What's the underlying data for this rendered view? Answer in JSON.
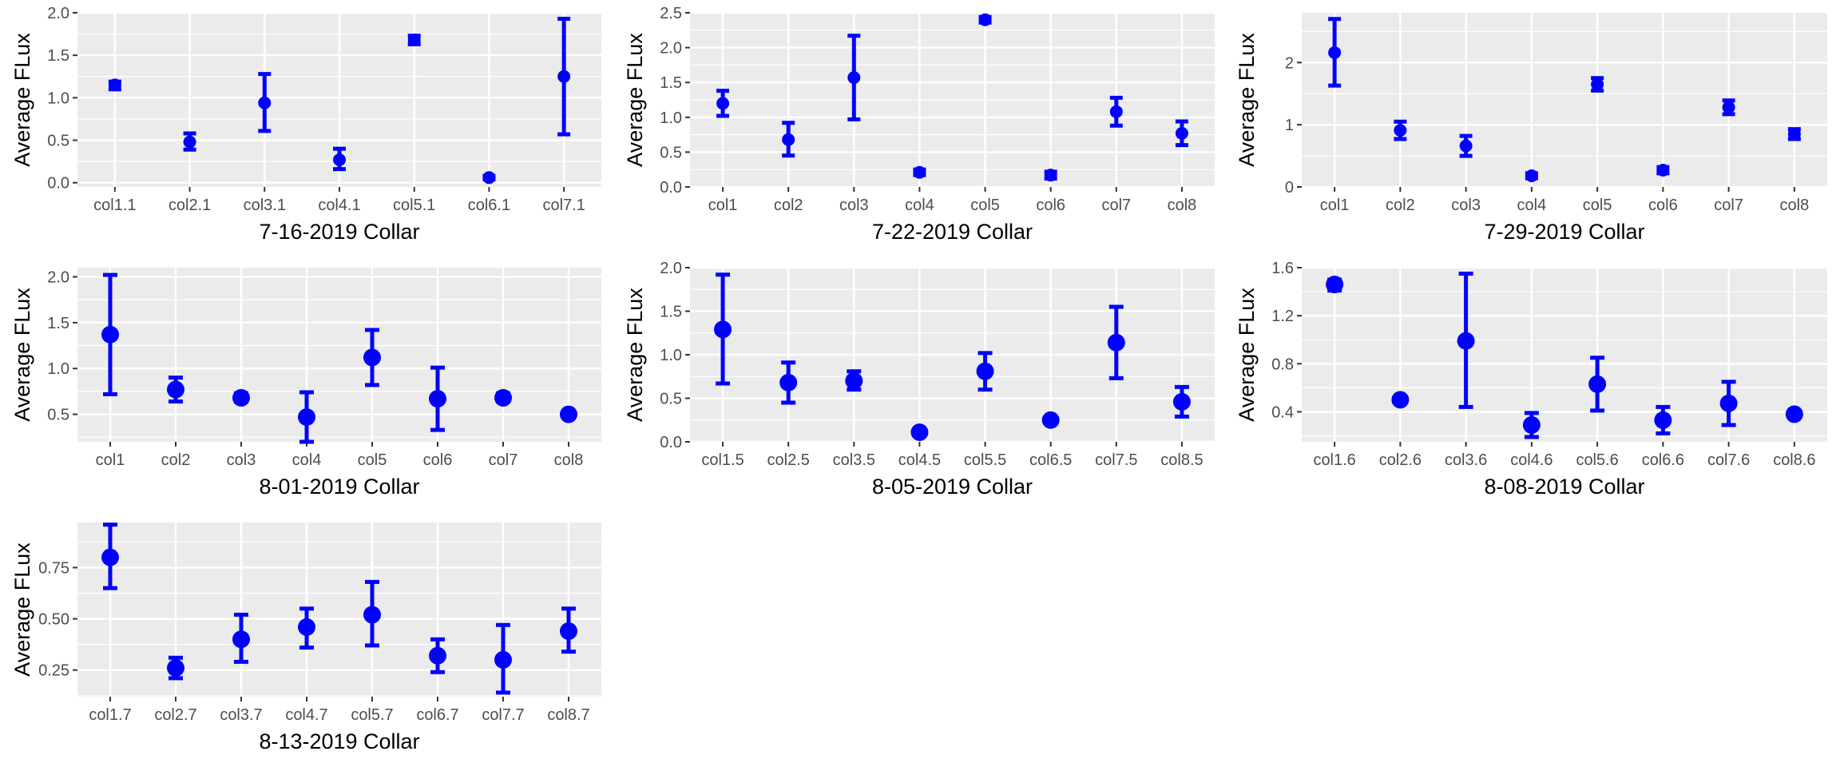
{
  "chart_data": [
    {
      "type": "scatter",
      "xlabel": "7-16-2019 Collar",
      "ylabel": "Average FLux",
      "categories": [
        "col1.1",
        "col2.1",
        "col3.1",
        "col4.1",
        "col5.1",
        "col6.1",
        "col7.1"
      ],
      "values": [
        1.15,
        0.48,
        0.94,
        0.27,
        1.68,
        0.06,
        1.25
      ],
      "error_low": [
        1.1,
        0.39,
        0.61,
        0.16,
        1.63,
        0.04,
        0.57
      ],
      "error_high": [
        1.19,
        0.58,
        1.28,
        0.4,
        1.73,
        0.08,
        1.93
      ],
      "ylim": [
        -0.05,
        2.0
      ],
      "yticks": [
        0.0,
        0.5,
        1.0,
        1.5,
        2.0
      ],
      "ytick_labels": [
        "0.0",
        "0.5",
        "1.0",
        "1.5",
        "2.0"
      ],
      "grid": true
    },
    {
      "type": "scatter",
      "xlabel": "7-22-2019 Collar",
      "ylabel": "Average FLux",
      "categories": [
        "col1",
        "col2",
        "col3",
        "col4",
        "col5",
        "col6",
        "col7",
        "col8"
      ],
      "values": [
        1.2,
        0.68,
        1.57,
        0.21,
        2.4,
        0.17,
        1.08,
        0.77
      ],
      "error_low": [
        1.02,
        0.45,
        0.97,
        0.17,
        2.36,
        0.12,
        0.88,
        0.6
      ],
      "error_high": [
        1.38,
        0.92,
        2.17,
        0.25,
        2.44,
        0.22,
        1.28,
        0.94
      ],
      "ylim": [
        0.0,
        2.5
      ],
      "yticks": [
        0.0,
        0.5,
        1.0,
        1.5,
        2.0,
        2.5
      ],
      "ytick_labels": [
        "0.0",
        "0.5",
        "1.0",
        "1.5",
        "2.0",
        "2.5"
      ],
      "grid": true
    },
    {
      "type": "scatter",
      "xlabel": "7-29-2019 Collar",
      "ylabel": "Average FLux",
      "categories": [
        "col1",
        "col2",
        "col3",
        "col4",
        "col5",
        "col6",
        "col7",
        "col8"
      ],
      "values": [
        2.16,
        0.91,
        0.66,
        0.18,
        1.65,
        0.27,
        1.28,
        0.85
      ],
      "error_low": [
        1.63,
        0.77,
        0.5,
        0.14,
        1.55,
        0.22,
        1.17,
        0.77
      ],
      "error_high": [
        2.7,
        1.05,
        0.82,
        0.22,
        1.75,
        0.32,
        1.39,
        0.93
      ],
      "ylim": [
        0.0,
        2.8
      ],
      "yticks": [
        0,
        1,
        2
      ],
      "ytick_labels": [
        "0",
        "1",
        "2"
      ],
      "grid": true
    },
    {
      "type": "scatter",
      "xlabel": "8-01-2019 Collar",
      "ylabel": "Average FLux",
      "categories": [
        "col1",
        "col2",
        "col3",
        "col4",
        "col5",
        "col6",
        "col7",
        "col8"
      ],
      "values": [
        1.37,
        0.77,
        0.68,
        0.47,
        1.12,
        0.67,
        0.68,
        0.5
      ],
      "error_low": [
        0.72,
        0.64,
        0.64,
        0.2,
        0.82,
        0.33,
        0.64,
        0.48
      ],
      "error_high": [
        2.02,
        0.9,
        0.73,
        0.74,
        1.42,
        1.01,
        0.73,
        0.53
      ],
      "ylim": [
        0.2,
        2.1
      ],
      "yticks": [
        0.5,
        1.0,
        1.5,
        2.0
      ],
      "ytick_labels": [
        "0.5",
        "1.0",
        "1.5",
        "2.0"
      ],
      "grid": true
    },
    {
      "type": "scatter",
      "xlabel": "8-05-2019 Collar",
      "ylabel": "Average FLux",
      "categories": [
        "col1.5",
        "col2.5",
        "col3.5",
        "col4.5",
        "col5.5",
        "col6.5",
        "col7.5",
        "col8.5"
      ],
      "values": [
        1.29,
        0.68,
        0.7,
        0.11,
        0.81,
        0.25,
        1.14,
        0.46
      ],
      "error_low": [
        0.67,
        0.45,
        0.6,
        0.1,
        0.6,
        0.24,
        0.73,
        0.29
      ],
      "error_high": [
        1.92,
        0.91,
        0.81,
        0.12,
        1.02,
        0.26,
        1.55,
        0.63
      ],
      "ylim": [
        0.0,
        2.0
      ],
      "yticks": [
        0.0,
        0.5,
        1.0,
        1.5,
        2.0
      ],
      "ytick_labels": [
        "0.0",
        "0.5",
        "1.0",
        "1.5",
        "2.0"
      ],
      "grid": true
    },
    {
      "type": "scatter",
      "xlabel": "8-08-2019 Collar",
      "ylabel": "Average FLux",
      "categories": [
        "col1.6",
        "col2.6",
        "col3.6",
        "col4.6",
        "col5.6",
        "col6.6",
        "col7.6",
        "col8.6"
      ],
      "values": [
        1.46,
        0.5,
        0.99,
        0.29,
        0.63,
        0.33,
        0.47,
        0.38
      ],
      "error_low": [
        1.41,
        0.49,
        0.44,
        0.19,
        0.41,
        0.22,
        0.29,
        0.37
      ],
      "error_high": [
        1.5,
        0.51,
        1.55,
        0.39,
        0.85,
        0.44,
        0.65,
        0.39
      ],
      "ylim": [
        0.15,
        1.6
      ],
      "yticks": [
        0.4,
        0.8,
        1.2,
        1.6
      ],
      "ytick_labels": [
        "0.4",
        "0.8",
        "1.2",
        "1.6"
      ],
      "grid": true
    },
    {
      "type": "scatter",
      "xlabel": "8-13-2019 Collar",
      "ylabel": "Average FLux",
      "categories": [
        "col1.7",
        "col2.7",
        "col3.7",
        "col4.7",
        "col5.7",
        "col6.7",
        "col7.7",
        "col8.7"
      ],
      "values": [
        0.8,
        0.26,
        0.4,
        0.46,
        0.52,
        0.32,
        0.3,
        0.44
      ],
      "error_low": [
        0.65,
        0.21,
        0.29,
        0.36,
        0.37,
        0.24,
        0.14,
        0.34
      ],
      "error_high": [
        0.96,
        0.31,
        0.52,
        0.55,
        0.68,
        0.4,
        0.47,
        0.55
      ],
      "ylim": [
        0.12,
        0.97
      ],
      "yticks": [
        0.25,
        0.5,
        0.75
      ],
      "ytick_labels": [
        "0.25",
        "0.50",
        "0.75"
      ],
      "grid": true
    }
  ],
  "colors": {
    "panel_background": "#ebebeb",
    "grid_major": "#ffffff",
    "marker": "#0000ff",
    "tick_text": "#4d4d4d",
    "title_text": "#000000"
  }
}
